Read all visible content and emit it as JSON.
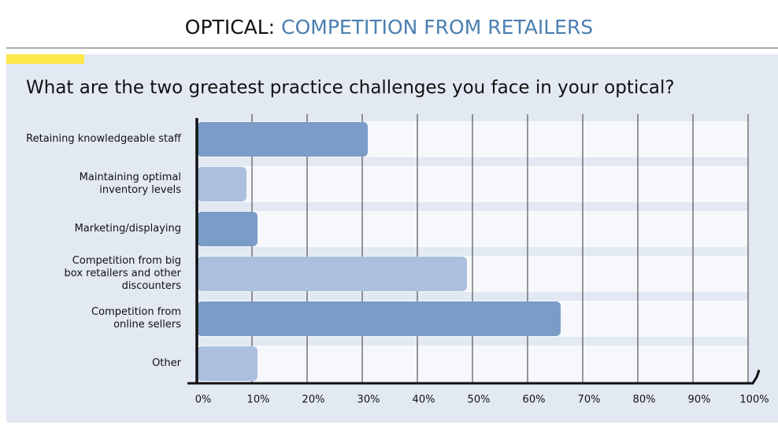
{
  "chart_data": {
    "type": "barh",
    "title_lead": "OPTICAL:",
    "title": "COMPETITION FROM RETAILERS",
    "subtitle": "What are the two greatest practice challenges you face in your optical?",
    "categories": [
      "Retaining knowledgeable staff",
      "Maintaining optimal\ninventory levels",
      "Marketing/displaying",
      "Competition from big\nbox retailers and other\ndiscounters",
      "Competition from\nonline sellers",
      "Other"
    ],
    "values": [
      31,
      9,
      11,
      49,
      66,
      11
    ],
    "colors": [
      "#7a9cc6",
      "#abc0dd",
      "#7a9cc6",
      "#abc0dd",
      "#7a9cc6",
      "#abc0dd"
    ],
    "xlim": [
      0,
      100
    ],
    "xticks": [
      {
        "value": 0,
        "label": "0%"
      },
      {
        "value": 10,
        "label": "10%"
      },
      {
        "value": 20,
        "label": "20%"
      },
      {
        "value": 30,
        "label": "30%"
      },
      {
        "value": 40,
        "label": "40%"
      },
      {
        "value": 50,
        "label": "50%"
      },
      {
        "value": 60,
        "label": "60%"
      },
      {
        "value": 70,
        "label": "70%"
      },
      {
        "value": 80,
        "label": "80%"
      },
      {
        "value": 90,
        "label": "90%"
      },
      {
        "value": 100,
        "label": "100%"
      }
    ],
    "grid": true
  }
}
